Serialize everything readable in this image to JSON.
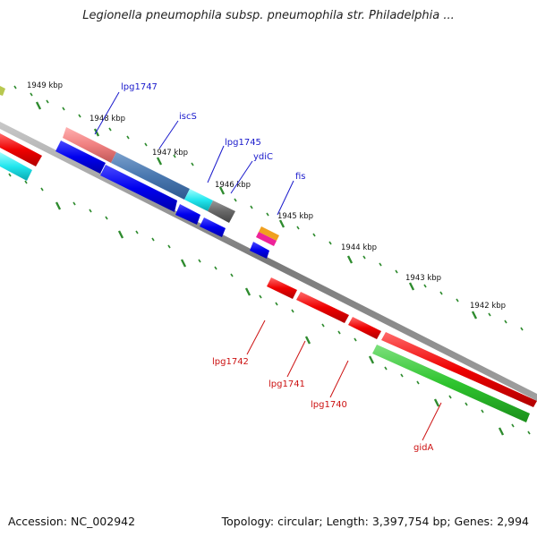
{
  "title": "Legionella pneumophila subsp. pneumophila str. Philadelphia ...",
  "footer": {
    "accession": "Accession: NC_002942",
    "topology": "Topology: circular; Length: 3,397,754 bp; Genes: 2,994"
  },
  "colors": {
    "backbone": "#808080",
    "forward_label": "#1a1acc",
    "reverse_label": "#cc1111",
    "tick": "#2e8b2e"
  },
  "kbp_labels": [
    "1949 kbp",
    "1948 kbp",
    "1947 kbp",
    "1946 kbp",
    "1945 kbp",
    "1944 kbp",
    "1943 kbp",
    "1942 kbp"
  ],
  "forward_genes": [
    "lpg1747",
    "iscS",
    "lpg1745",
    "ydiC",
    "fis"
  ],
  "reverse_genes": [
    "lpg1742",
    "lpg1741",
    "lpg1740",
    "gidA"
  ]
}
